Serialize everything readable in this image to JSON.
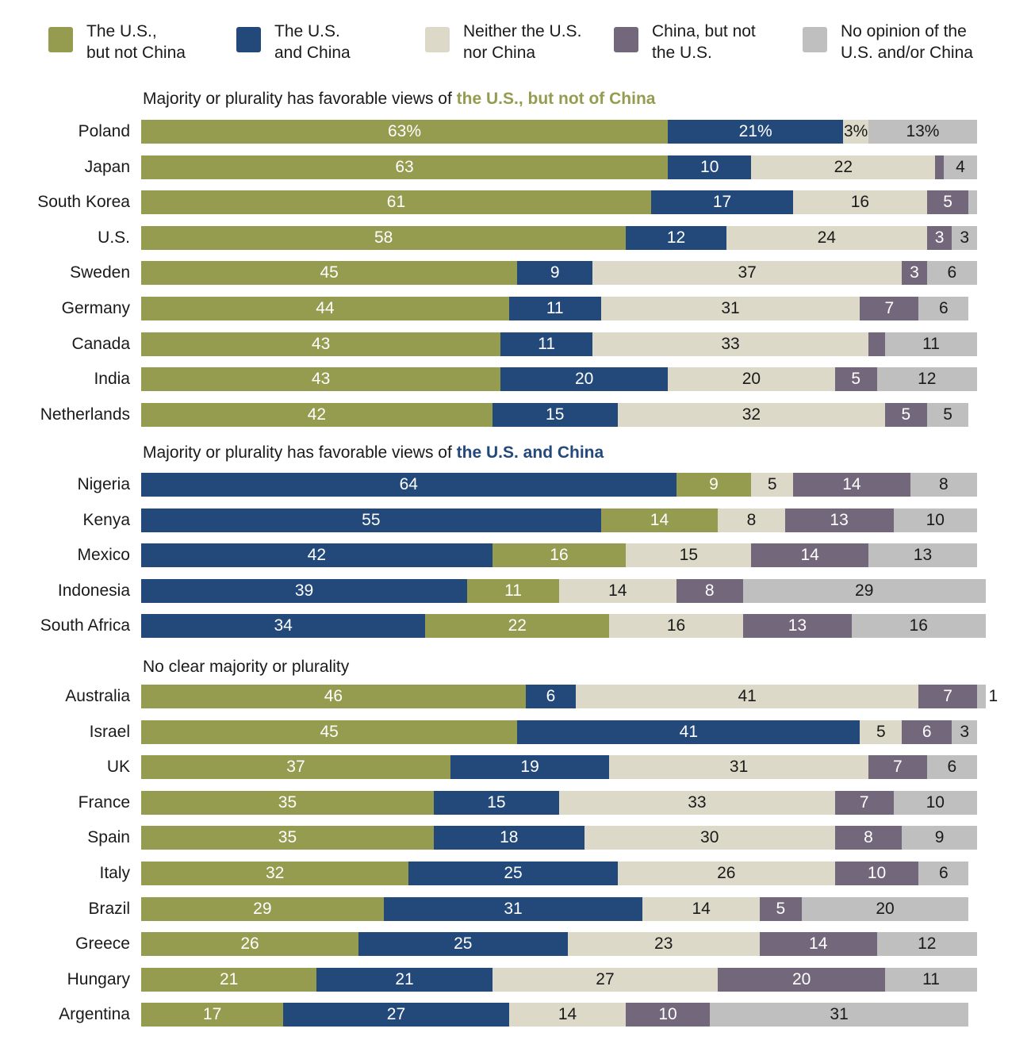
{
  "chart_data": {
    "type": "bar",
    "orientation": "horizontal",
    "stacked": true,
    "title": "",
    "xlabel": "",
    "ylabel": "",
    "xlim": [
      0,
      100
    ],
    "unit": "%",
    "grid": false,
    "legend_position": "top",
    "legend": [
      {
        "key": "us_not_china",
        "label": "The U.S.,\nbut not China",
        "color": "#959c4f"
      },
      {
        "key": "us_and_china",
        "label": "The U.S.\nand China",
        "color": "#23497b"
      },
      {
        "key": "neither",
        "label": "Neither the U.S.\nnor China",
        "color": "#dcd9c8"
      },
      {
        "key": "china_not_us",
        "label": "China, but not\nthe U.S.",
        "color": "#73687b"
      },
      {
        "key": "no_opinion",
        "label": "No opinion of the\nU.S. and/or China",
        "color": "#bfbfbf"
      }
    ],
    "sections": [
      {
        "title_plain": "Majority or plurality has favorable views of ",
        "title_highlight": "the U.S., but not of China",
        "highlight_color": "#959c4f",
        "order": [
          "us_not_china",
          "us_and_china",
          "neither",
          "china_not_us",
          "no_opinion"
        ],
        "rows": [
          {
            "country": "Poland",
            "values": [
              63,
              21,
              3,
              0,
              13
            ],
            "labels": [
              "63%",
              "21%",
              "3%",
              "",
              "13%"
            ]
          },
          {
            "country": "Japan",
            "values": [
              63,
              10,
              22,
              1,
              4
            ],
            "labels": [
              "63",
              "10",
              "22",
              "",
              "4"
            ]
          },
          {
            "country": "South Korea",
            "values": [
              61,
              17,
              16,
              5,
              1
            ],
            "labels": [
              "61",
              "17",
              "16",
              "5",
              ""
            ]
          },
          {
            "country": "U.S.",
            "values": [
              58,
              12,
              24,
              3,
              3
            ],
            "labels": [
              "58",
              "12",
              "24",
              "3",
              "3"
            ]
          },
          {
            "country": "Sweden",
            "values": [
              45,
              9,
              37,
              3,
              6
            ],
            "labels": [
              "45",
              "9",
              "37",
              "3",
              "6"
            ]
          },
          {
            "country": "Germany",
            "values": [
              44,
              11,
              31,
              7,
              6
            ],
            "labels": [
              "44",
              "11",
              "31",
              "7",
              "6"
            ]
          },
          {
            "country": "Canada",
            "values": [
              43,
              11,
              33,
              2,
              11
            ],
            "labels": [
              "43",
              "11",
              "33",
              "",
              "11"
            ]
          },
          {
            "country": "India",
            "values": [
              43,
              20,
              20,
              5,
              12
            ],
            "labels": [
              "43",
              "20",
              "20",
              "5",
              "12"
            ]
          },
          {
            "country": "Netherlands",
            "values": [
              42,
              15,
              32,
              5,
              5
            ],
            "labels": [
              "42",
              "15",
              "32",
              "5",
              "5"
            ]
          }
        ]
      },
      {
        "title_plain": "Majority or plurality has favorable views of ",
        "title_highlight": "the U.S. and China",
        "highlight_color": "#23497b",
        "order": [
          "us_and_china",
          "us_not_china",
          "neither",
          "china_not_us",
          "no_opinion"
        ],
        "rows": [
          {
            "country": "Nigeria",
            "values": [
              64,
              9,
              5,
              14,
              8
            ],
            "labels": [
              "64",
              "9",
              "5",
              "14",
              "8"
            ]
          },
          {
            "country": "Kenya",
            "values": [
              55,
              14,
              8,
              13,
              10
            ],
            "labels": [
              "55",
              "14",
              "8",
              "13",
              "10"
            ]
          },
          {
            "country": "Mexico",
            "values": [
              42,
              16,
              15,
              14,
              13
            ],
            "labels": [
              "42",
              "16",
              "15",
              "14",
              "13"
            ]
          },
          {
            "country": "Indonesia",
            "values": [
              39,
              11,
              14,
              8,
              29
            ],
            "labels": [
              "39",
              "11",
              "14",
              "8",
              "29"
            ]
          },
          {
            "country": "South Africa",
            "values": [
              34,
              22,
              16,
              13,
              16
            ],
            "labels": [
              "34",
              "22",
              "16",
              "13",
              "16"
            ]
          }
        ]
      },
      {
        "title_plain": "No clear majority or plurality",
        "title_highlight": "",
        "highlight_color": "#1a1a1a",
        "order": [
          "us_not_china",
          "us_and_china",
          "neither",
          "china_not_us",
          "no_opinion"
        ],
        "rows": [
          {
            "country": "Australia",
            "values": [
              46,
              6,
              41,
              7,
              1
            ],
            "labels": [
              "46",
              "6",
              "41",
              "7",
              "1"
            ],
            "outside_last": true
          },
          {
            "country": "Israel",
            "values": [
              45,
              41,
              5,
              6,
              3
            ],
            "labels": [
              "45",
              "41",
              "5",
              "6",
              "3"
            ]
          },
          {
            "country": "UK",
            "values": [
              37,
              19,
              31,
              7,
              6
            ],
            "labels": [
              "37",
              "19",
              "31",
              "7",
              "6"
            ]
          },
          {
            "country": "France",
            "values": [
              35,
              15,
              33,
              7,
              10
            ],
            "labels": [
              "35",
              "15",
              "33",
              "7",
              "10"
            ]
          },
          {
            "country": "Spain",
            "values": [
              35,
              18,
              30,
              8,
              9
            ],
            "labels": [
              "35",
              "18",
              "30",
              "8",
              "9"
            ]
          },
          {
            "country": "Italy",
            "values": [
              32,
              25,
              26,
              10,
              6
            ],
            "labels": [
              "32",
              "25",
              "26",
              "10",
              "6"
            ]
          },
          {
            "country": "Brazil",
            "values": [
              29,
              31,
              14,
              5,
              20
            ],
            "labels": [
              "29",
              "31",
              "14",
              "5",
              "20"
            ]
          },
          {
            "country": "Greece",
            "values": [
              26,
              25,
              23,
              14,
              12
            ],
            "labels": [
              "26",
              "25",
              "23",
              "14",
              "12"
            ]
          },
          {
            "country": "Hungary",
            "values": [
              21,
              21,
              27,
              20,
              11
            ],
            "labels": [
              "21",
              "21",
              "27",
              "20",
              "11"
            ]
          },
          {
            "country": "Argentina",
            "values": [
              17,
              27,
              14,
              10,
              31
            ],
            "labels": [
              "17",
              "27",
              "14",
              "10",
              "31"
            ]
          }
        ]
      }
    ]
  }
}
